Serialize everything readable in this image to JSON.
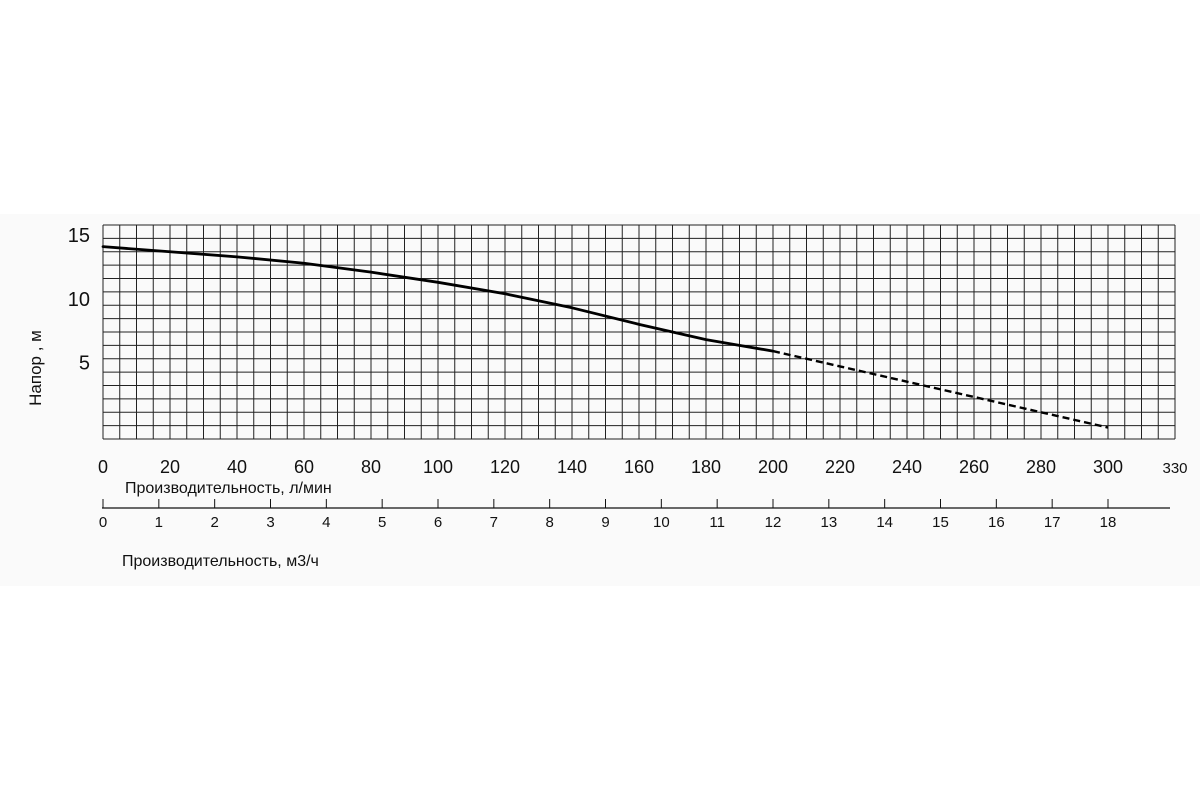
{
  "chart_data": {
    "type": "line",
    "ylabel": "Напор , м",
    "xlabel": "Производительность, л/мин",
    "x2label": "Производительность, м3/ч",
    "y_ticks": [
      "15",
      "10",
      "5"
    ],
    "x_ticks": [
      "0",
      "20",
      "40",
      "60",
      "80",
      "100",
      "120",
      "140",
      "160",
      "180",
      "200",
      "220",
      "240",
      "260",
      "280",
      "300",
      "330"
    ],
    "x2_ticks": [
      "0",
      "1",
      "2",
      "3",
      "4",
      "5",
      "6",
      "7",
      "8",
      "9",
      "10",
      "11",
      "12",
      "13",
      "14",
      "15",
      "16",
      "17",
      "18"
    ],
    "xlim": [
      0,
      320
    ],
    "ylim": [
      -1,
      15.8
    ],
    "grid": true,
    "series": [
      {
        "style": "solid",
        "x": [
          0,
          20,
          40,
          60,
          80,
          100,
          120,
          140,
          160,
          180,
          200
        ],
        "y": [
          14.1,
          13.7,
          13.3,
          12.8,
          12.1,
          11.3,
          10.4,
          9.3,
          8.0,
          6.8,
          5.9
        ]
      },
      {
        "style": "dashed",
        "x": [
          200,
          220,
          240,
          260,
          280,
          300
        ],
        "y": [
          5.9,
          4.7,
          3.5,
          2.3,
          1.1,
          -0.1
        ]
      }
    ]
  }
}
